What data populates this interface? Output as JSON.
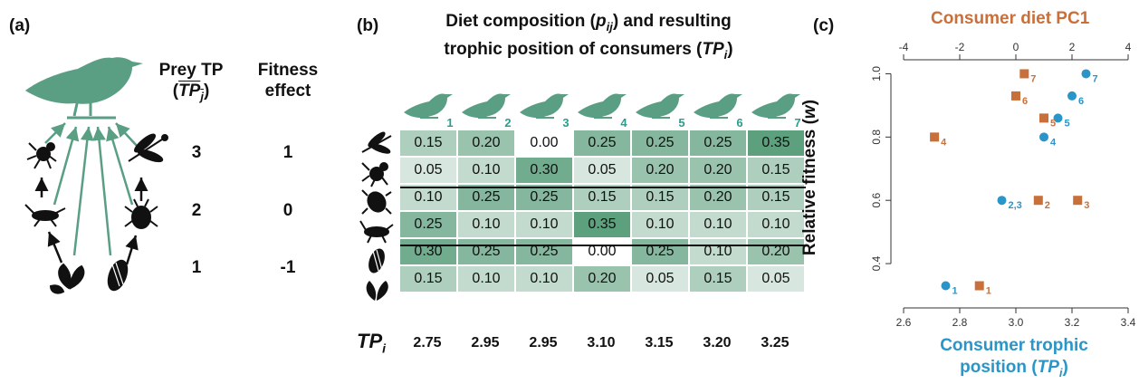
{
  "panel_a": {
    "label": "(a)",
    "col1_header_line1": "Prey TP",
    "col1_header_line2": "(TPj)",
    "col2_header_line1": "Fitness",
    "col2_header_line2": "effect",
    "rows": [
      {
        "tp": "3",
        "effect": "1"
      },
      {
        "tp": "2",
        "effect": "0"
      },
      {
        "tp": "1",
        "effect": "-1"
      }
    ],
    "green": "#5a9e84"
  },
  "panel_b": {
    "label": "(b)",
    "title_line1_prefix": "Diet composition (",
    "title_line1_var": "p",
    "title_line1_sub": "ij",
    "title_line1_suffix": ") and resulting",
    "title_line2_prefix": "trophic position of consumers (",
    "title_line2_var": "TP",
    "title_line2_sub": "i",
    "title_line2_suffix": ")",
    "consumers": [
      "1",
      "2",
      "3",
      "4",
      "5",
      "6",
      "7"
    ],
    "prey_icons": [
      "dragonfly-icon",
      "spider-icon",
      "beetle-icon",
      "cricket-icon",
      "seed-icon",
      "leaf-icon"
    ],
    "matrix": [
      [
        "0.15",
        "0.20",
        "0.00",
        "0.25",
        "0.25",
        "0.25",
        "0.35"
      ],
      [
        "0.05",
        "0.10",
        "0.30",
        "0.05",
        "0.20",
        "0.20",
        "0.15"
      ],
      [
        "0.10",
        "0.25",
        "0.25",
        "0.15",
        "0.15",
        "0.20",
        "0.15"
      ],
      [
        "0.25",
        "0.10",
        "0.10",
        "0.35",
        "0.10",
        "0.10",
        "0.10"
      ],
      [
        "0.30",
        "0.25",
        "0.25",
        "0.00",
        "0.25",
        "0.10",
        "0.20"
      ],
      [
        "0.15",
        "0.10",
        "0.10",
        "0.20",
        "0.05",
        "0.15",
        "0.05"
      ]
    ],
    "tp_label": "TP",
    "tp_sub": "i",
    "tp_values": [
      "2.75",
      "2.95",
      "2.95",
      "3.10",
      "3.15",
      "3.20",
      "3.25"
    ]
  },
  "panel_c": {
    "label": "(c)",
    "top_axis_title": "Consumer diet PC1",
    "y_axis_title_prefix": "Relative fitness (",
    "y_axis_title_var": "w",
    "y_axis_title_suffix": ")",
    "bottom_axis_title_line1": "Consumer trophic",
    "bottom_axis_title_line2_prefix": "position (",
    "bottom_axis_title_line2_var": "TP",
    "bottom_axis_title_line2_sub": "i",
    "bottom_axis_title_line2_suffix": ")",
    "orange": "#c9703a",
    "blue": "#2a95c8"
  },
  "chart_data": {
    "type": "scatter",
    "title": "",
    "x_bottom": {
      "label": "Consumer trophic position (TPi)",
      "range": [
        2.6,
        3.4
      ],
      "ticks": [
        "2.6",
        "2.8",
        "3.0",
        "3.2",
        "3.4"
      ]
    },
    "x_top": {
      "label": "Consumer diet PC1",
      "range": [
        -4,
        4
      ],
      "ticks": [
        "-4",
        "-2",
        "0",
        "2",
        "4"
      ]
    },
    "y": {
      "label": "Relative fitness (w)",
      "range": [
        0.3,
        1.05
      ],
      "ticks": [
        "0.4",
        "0.6",
        "0.8",
        "1.0"
      ]
    },
    "grid": false,
    "series": [
      {
        "name": "",
        "axis": "bottom",
        "color": "#2a95c8",
        "marker": "circle",
        "points": [
          {
            "x": 2.75,
            "y": 0.33,
            "label": "1"
          },
          {
            "x": 2.95,
            "y": 0.6,
            "label": "2,3"
          },
          {
            "x": 3.1,
            "y": 0.8,
            "label": "4"
          },
          {
            "x": 3.15,
            "y": 0.86,
            "label": "5"
          },
          {
            "x": 3.2,
            "y": 0.93,
            "label": "6"
          },
          {
            "x": 3.25,
            "y": 1.0,
            "label": "7"
          }
        ]
      },
      {
        "name": "",
        "axis": "top",
        "color": "#c9703a",
        "marker": "square",
        "points": [
          {
            "x": -1.3,
            "y": 0.33,
            "label": "1"
          },
          {
            "x": 0.8,
            "y": 0.6,
            "label": "2"
          },
          {
            "x": 2.2,
            "y": 0.6,
            "label": "3"
          },
          {
            "x": -2.9,
            "y": 0.8,
            "label": "4"
          },
          {
            "x": 1.0,
            "y": 0.86,
            "label": "5"
          },
          {
            "x": 0.0,
            "y": 0.93,
            "label": "6"
          },
          {
            "x": 0.3,
            "y": 1.0,
            "label": "7"
          }
        ]
      }
    ]
  }
}
